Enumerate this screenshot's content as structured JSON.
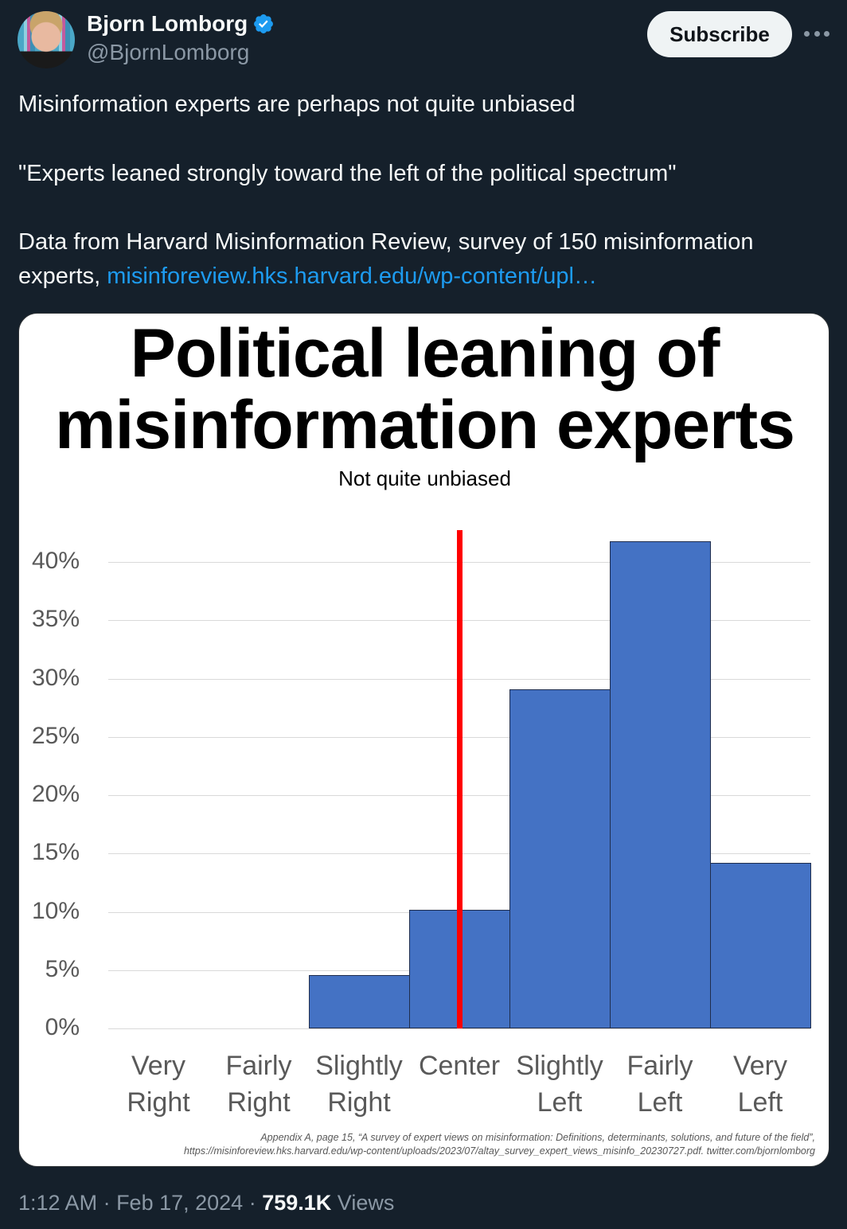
{
  "author": {
    "name": "Bjorn Lomborg",
    "handle": "@BjornLomborg",
    "verified": true,
    "verified_color": "#1d9bf0"
  },
  "actions": {
    "subscribe_label": "Subscribe",
    "more_icon": "ellipsis-icon"
  },
  "tweet": {
    "line1": "Misinformation experts are perhaps not quite unbiased",
    "line2": "\"Experts leaned strongly toward the left of the political spectrum\"",
    "line3_text": "Data from Harvard Misinformation Review, survey of 150 misinformation experts, ",
    "line3_link": "misinforeview.hks.harvard.edu/wp-content/upl…",
    "link_color": "#1d9bf0"
  },
  "image": {
    "title_line1": "Political leaning of",
    "title_line2": "misinformation experts",
    "subtitle": "Not quite unbiased",
    "source_line1": "Appendix A, page 15, “A survey of expert views on misinformation: Definitions, determinants, solutions, and future of the field”,",
    "source_line2": "https://misinforeview.hks.harvard.edu/wp-content/uploads/2023/07/altay_survey_expert_views_misinfo_20230727.pdf. twitter.com/bjornlomborg"
  },
  "chart_data": {
    "type": "bar",
    "title": "Political leaning of misinformation experts",
    "subtitle": "Not quite unbiased",
    "categories": [
      "Very Right",
      "Fairly Right",
      "Slightly Right",
      "Center",
      "Slightly Left",
      "Fairly Left",
      "Very Left"
    ],
    "category_lines": [
      [
        "Very",
        "Right"
      ],
      [
        "Fairly",
        "Right"
      ],
      [
        "Slightly",
        "Right"
      ],
      [
        "Center",
        ""
      ],
      [
        "Slightly",
        "Left"
      ],
      [
        "Fairly",
        "Left"
      ],
      [
        "Very",
        "Left"
      ]
    ],
    "values": [
      0,
      0,
      4.6,
      10.2,
      29.1,
      41.8,
      14.2
    ],
    "yticks": [
      "0%",
      "5%",
      "10%",
      "15%",
      "20%",
      "25%",
      "30%",
      "35%",
      "40%"
    ],
    "ylim": [
      0,
      43
    ],
    "xlabel": "",
    "ylabel": "",
    "grid": true,
    "bar_color": "#4472c4",
    "annotation": {
      "type": "vertical-line",
      "position": "Center",
      "color": "#ff0000",
      "label": ""
    },
    "legend": null
  },
  "footer": {
    "time": "1:12 AM",
    "date": "Feb 17, 2024",
    "views_count": "759.1K",
    "views_label": "Views",
    "sep": " · "
  }
}
